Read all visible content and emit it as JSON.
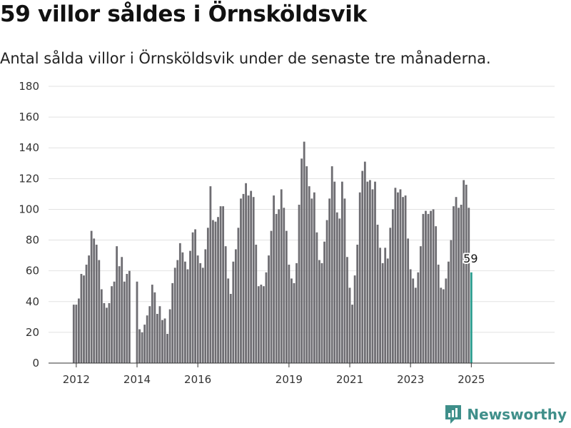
{
  "title": "59 villor såldes i Örnsköldsvik",
  "subtitle": "Antal sålda villor i Örnsköldsvik under de senaste tre månaderna.",
  "brand": {
    "name": "Newsworthy",
    "icon": "newsworthy-logo-icon",
    "color": "#3f8f8a"
  },
  "chart_data": {
    "type": "bar",
    "title": "59 villor såldes i Örnsköldsvik",
    "subtitle": "Antal sålda villor i Örnsköldsvik under de senaste tre månaderna.",
    "xlabel": "",
    "ylabel": "",
    "ylim": [
      0,
      180
    ],
    "yticks": [
      0,
      20,
      40,
      60,
      80,
      100,
      120,
      140,
      160,
      180
    ],
    "xticks": [
      {
        "label": "2012",
        "x": "2012-01"
      },
      {
        "label": "2014",
        "x": "2014-01"
      },
      {
        "label": "2016",
        "x": "2016-01"
      },
      {
        "label": "2019",
        "x": "2019-01"
      },
      {
        "label": "2021",
        "x": "2021-01"
      },
      {
        "label": "2023",
        "x": "2023-01"
      },
      {
        "label": "2025",
        "x": "2025-01"
      }
    ],
    "grid": true,
    "bar_color": "#6e6d72",
    "highlight_color": "#2a9d8f",
    "highlight_label": "59",
    "periods": [
      "2011-12",
      "2012-01",
      "2012-02",
      "2012-03",
      "2012-04",
      "2012-05",
      "2012-06",
      "2012-07",
      "2012-08",
      "2012-09",
      "2012-10",
      "2012-11",
      "2012-12",
      "2013-01",
      "2013-02",
      "2013-03",
      "2013-04",
      "2013-05",
      "2013-06",
      "2013-07",
      "2013-08",
      "2013-09",
      "2013-10",
      "2014-01",
      "2014-02",
      "2014-03",
      "2014-04",
      "2014-05",
      "2014-06",
      "2014-07",
      "2014-08",
      "2014-09",
      "2014-10",
      "2014-11",
      "2014-12",
      "2015-01",
      "2015-02",
      "2015-03",
      "2015-04",
      "2015-05",
      "2015-06",
      "2015-07",
      "2015-08",
      "2015-09",
      "2015-10",
      "2015-11",
      "2015-12",
      "2016-01",
      "2016-02",
      "2016-03",
      "2016-04",
      "2016-05",
      "2016-06",
      "2016-07",
      "2016-08",
      "2016-09",
      "2016-10",
      "2016-11",
      "2016-12",
      "2017-01",
      "2017-02",
      "2017-03",
      "2017-04",
      "2017-05",
      "2017-06",
      "2017-07",
      "2017-08",
      "2017-09",
      "2017-10",
      "2017-11",
      "2017-12",
      "2018-01",
      "2018-02",
      "2018-03",
      "2018-04",
      "2018-05",
      "2018-06",
      "2018-07",
      "2018-08",
      "2018-09",
      "2018-10",
      "2018-11",
      "2018-12",
      "2019-01",
      "2019-02",
      "2019-03",
      "2019-04",
      "2019-05",
      "2019-06",
      "2019-07",
      "2019-08",
      "2019-09",
      "2019-10",
      "2019-11",
      "2019-12",
      "2020-01",
      "2020-02",
      "2020-03",
      "2020-04",
      "2020-05",
      "2020-06",
      "2020-07",
      "2020-08",
      "2020-09",
      "2020-10",
      "2020-11",
      "2020-12",
      "2021-01",
      "2021-02",
      "2021-03",
      "2021-04",
      "2021-05",
      "2021-06",
      "2021-07",
      "2021-08",
      "2021-09",
      "2021-10",
      "2021-11",
      "2021-12",
      "2022-01",
      "2022-02",
      "2022-03",
      "2022-04",
      "2022-05",
      "2022-06",
      "2022-07",
      "2022-08",
      "2022-09",
      "2022-10",
      "2022-11",
      "2022-12",
      "2023-01",
      "2023-02",
      "2023-03",
      "2023-04",
      "2023-05",
      "2023-06",
      "2023-07",
      "2023-08",
      "2023-09",
      "2023-10",
      "2023-11",
      "2023-12",
      "2024-01",
      "2024-02",
      "2024-03",
      "2024-04",
      "2024-05",
      "2024-06",
      "2024-07",
      "2024-08",
      "2024-09",
      "2024-10",
      "2024-11",
      "2024-12",
      "2025-01"
    ],
    "values": [
      38,
      38,
      42,
      58,
      57,
      64,
      70,
      86,
      81,
      77,
      67,
      48,
      39,
      36,
      39,
      50,
      53,
      76,
      63,
      69,
      53,
      58,
      60,
      53,
      22,
      20,
      25,
      31,
      37,
      51,
      46,
      32,
      37,
      28,
      29,
      19,
      35,
      52,
      62,
      67,
      78,
      72,
      66,
      61,
      73,
      85,
      87,
      70,
      65,
      62,
      74,
      88,
      115,
      93,
      92,
      95,
      102,
      102,
      76,
      55,
      45,
      66,
      74,
      88,
      107,
      110,
      117,
      109,
      112,
      108,
      77,
      50,
      51,
      50,
      59,
      70,
      86,
      109,
      97,
      100,
      113,
      101,
      86,
      64,
      55,
      52,
      65,
      103,
      133,
      144,
      128,
      115,
      107,
      111,
      85,
      67,
      65,
      79,
      93,
      107,
      128,
      118,
      98,
      94,
      118,
      107,
      69,
      49,
      38,
      57,
      77,
      111,
      125,
      131,
      118,
      119,
      113,
      118,
      90,
      75,
      65,
      75,
      68,
      88,
      100,
      114,
      111,
      113,
      108,
      109,
      81,
      61,
      55,
      49,
      59,
      76,
      97,
      99,
      97,
      99,
      100,
      89,
      64,
      49,
      48,
      55,
      66,
      80,
      102,
      108,
      101,
      103,
      119,
      116,
      101,
      59
    ]
  }
}
